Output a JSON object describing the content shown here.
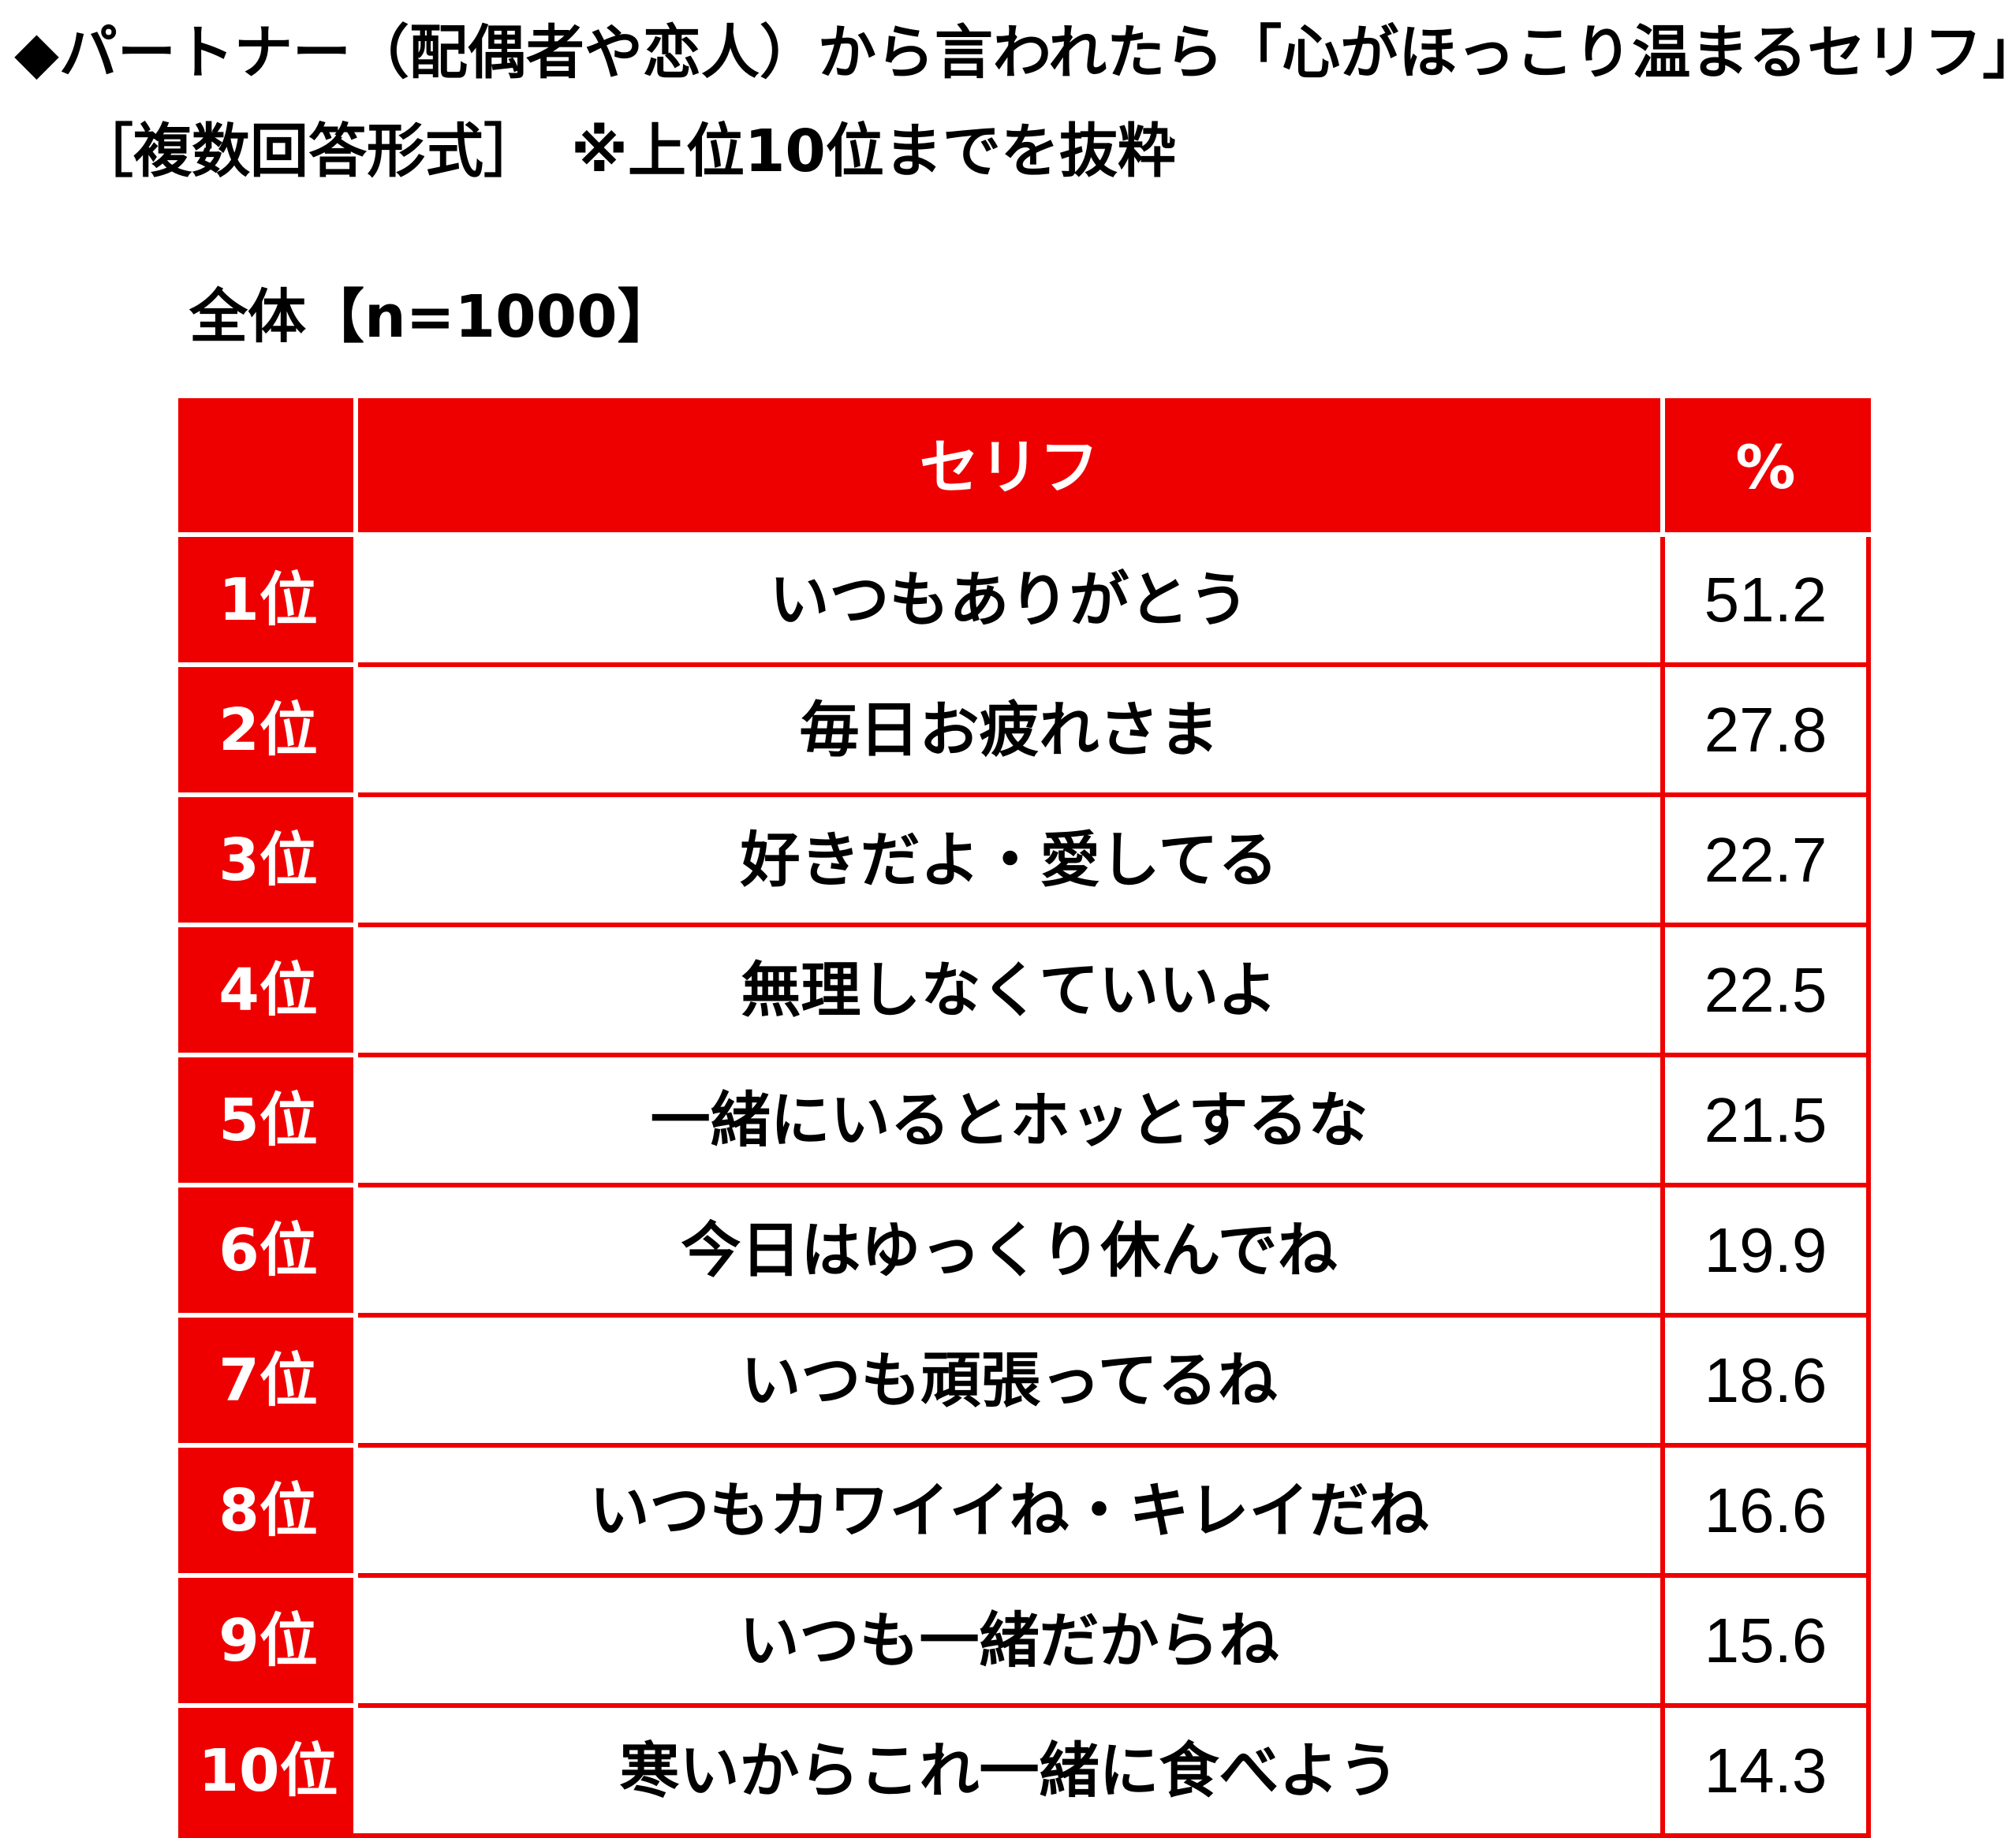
{
  "title_line1": "◆パートナー（配偶者や恋人）から言われたら「心がほっこり温まるセリフ」",
  "title_line2": "［複数回答形式］　※上位10位までを抜粋",
  "subtitle": "全体【n=1000】",
  "colors": {
    "accent": "#ee0000",
    "header_text": "#ffffff",
    "body_text": "#000000"
  },
  "chart_data": {
    "type": "table",
    "columns": [
      "",
      "セリフ",
      "%"
    ],
    "rows": [
      {
        "rank": "1位",
        "phrase": "いつもありがとう",
        "value": "51.2"
      },
      {
        "rank": "2位",
        "phrase": "毎日お疲れさま",
        "value": "27.8"
      },
      {
        "rank": "3位",
        "phrase": "好きだよ・愛してる",
        "value": "22.7"
      },
      {
        "rank": "4位",
        "phrase": "無理しなくていいよ",
        "value": "22.5"
      },
      {
        "rank": "5位",
        "phrase": "一緒にいるとホッとするな",
        "value": "21.5"
      },
      {
        "rank": "6位",
        "phrase": "今日はゆっくり休んでね",
        "value": "19.9"
      },
      {
        "rank": "7位",
        "phrase": "いつも頑張ってるね",
        "value": "18.6"
      },
      {
        "rank": "8位",
        "phrase": "いつもカワイイね・キレイだね",
        "value": "16.6"
      },
      {
        "rank": "9位",
        "phrase": "いつも一緒だからね",
        "value": "15.6"
      },
      {
        "rank": "10位",
        "phrase": "寒いからこれ一緒に食べよう",
        "value": "14.3"
      }
    ]
  }
}
